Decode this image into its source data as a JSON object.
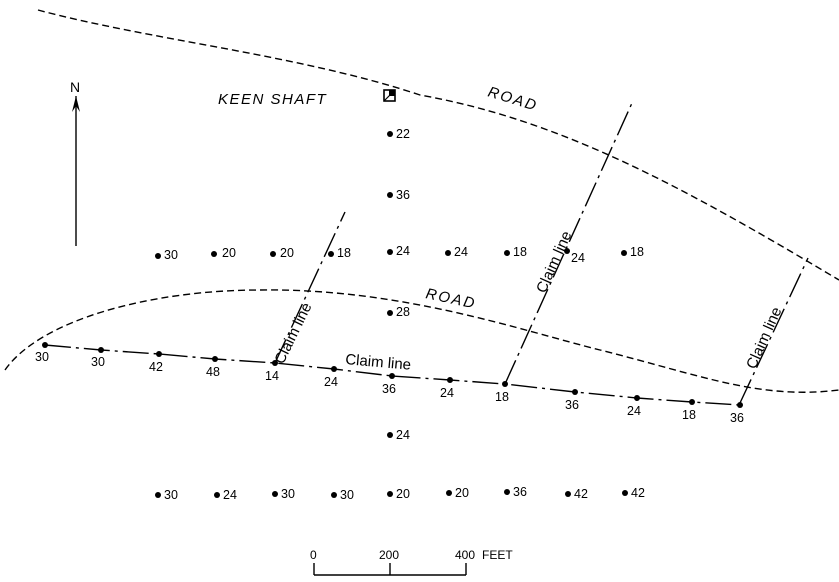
{
  "map": {
    "labels": {
      "shaft": "KEEN SHAFT",
      "road_north": "ROAD",
      "road_middle": "ROAD",
      "north": "N",
      "claim_1": "Claim line",
      "claim_2": "Claim line",
      "claim_3": "Claim line",
      "claim_4": "Claim line"
    },
    "samples": {
      "shaft_line": [
        "22",
        "36"
      ],
      "row_north": [
        "30",
        "20",
        "20",
        "18",
        "24",
        "24",
        "18",
        "24",
        "18"
      ],
      "center": [
        "28"
      ],
      "claim_row": [
        "30",
        "30",
        "42",
        "48",
        "14",
        "24",
        "36",
        "24",
        "18",
        "36",
        "24",
        "18",
        "36"
      ],
      "below": [
        "24"
      ],
      "row_south": [
        "30",
        "24",
        "30",
        "30",
        "20",
        "20",
        "36",
        "42",
        "42"
      ]
    },
    "scale": {
      "ticks": [
        "0",
        "200",
        "400"
      ],
      "unit": "FEET"
    }
  }
}
